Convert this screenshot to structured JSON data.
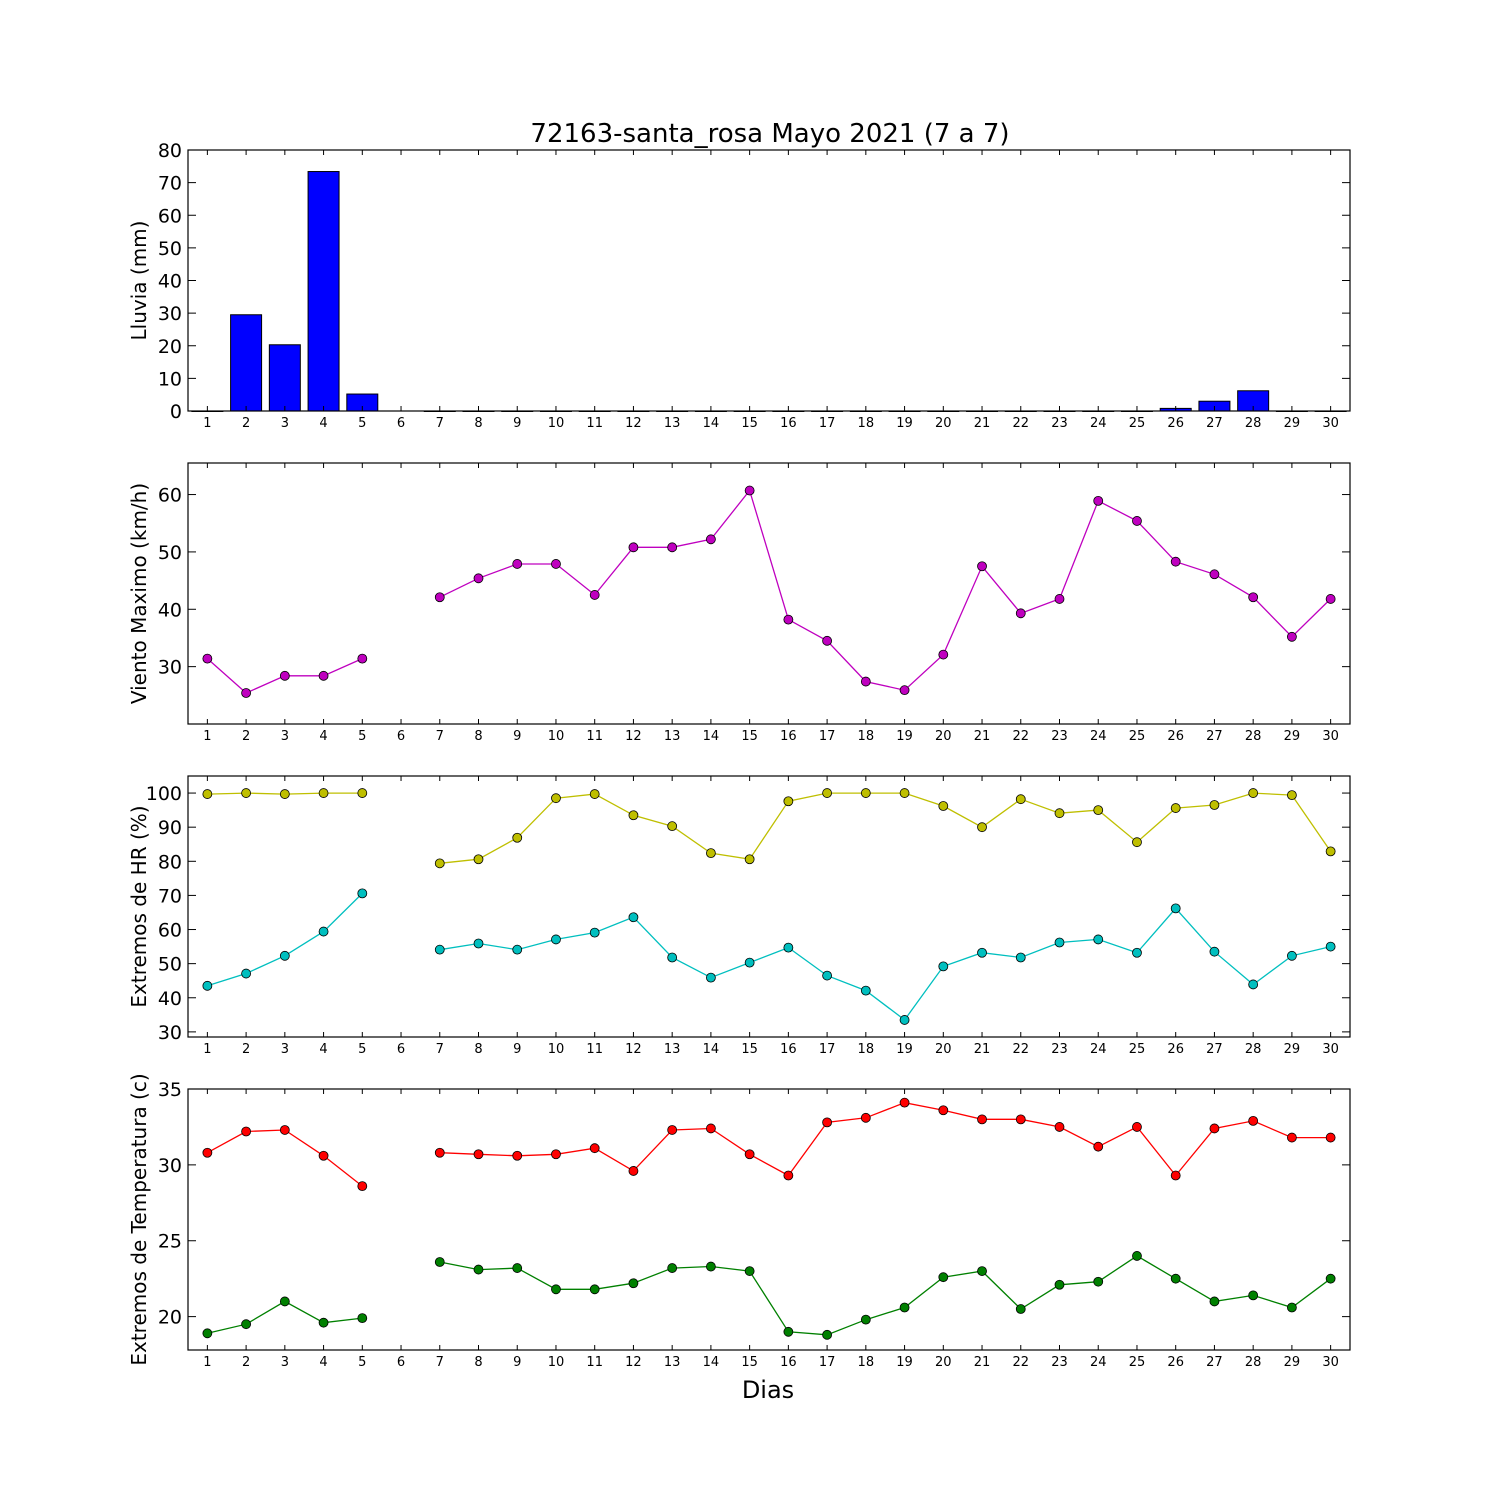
{
  "title": "72163-santa_rosa Mayo 2021  (7 a 7)",
  "xlabel": "Dias",
  "days": [
    1,
    2,
    3,
    4,
    5,
    6,
    7,
    8,
    9,
    10,
    11,
    12,
    13,
    14,
    15,
    16,
    17,
    18,
    19,
    20,
    21,
    22,
    23,
    24,
    25,
    26,
    27,
    28,
    29,
    30
  ],
  "colors": {
    "rain": "#0000ff",
    "wind": "#bf00bf",
    "hr_max": "#bfbf00",
    "hr_min": "#00bfbf",
    "temp_max": "#ff0000",
    "temp_min": "#008000"
  },
  "chart_data": [
    {
      "type": "bar",
      "ylabel": "Lluvia (mm)",
      "ylim": [
        0,
        80
      ],
      "yticks": [
        0,
        10,
        20,
        30,
        40,
        50,
        60,
        70,
        80
      ],
      "x": [
        1,
        2,
        3,
        4,
        5,
        6,
        7,
        8,
        9,
        10,
        11,
        12,
        13,
        14,
        15,
        16,
        17,
        18,
        19,
        20,
        21,
        22,
        23,
        24,
        25,
        26,
        27,
        28,
        29,
        30
      ],
      "series": [
        {
          "values": [
            0,
            29.5,
            20.3,
            73.4,
            5.2,
            null,
            0,
            0,
            0,
            0,
            0,
            0,
            0,
            0,
            0,
            0,
            0,
            0,
            0,
            0,
            0,
            0,
            0,
            0,
            0,
            0.8,
            3.0,
            6.2,
            0,
            0
          ]
        }
      ]
    },
    {
      "type": "line",
      "ylabel": "Viento Maximo (km/h)",
      "ylim": [
        20,
        65.5
      ],
      "yticks": [
        30,
        40,
        50,
        60
      ],
      "x": [
        1,
        2,
        3,
        4,
        5,
        6,
        7,
        8,
        9,
        10,
        11,
        12,
        13,
        14,
        15,
        16,
        17,
        18,
        19,
        20,
        21,
        22,
        23,
        24,
        25,
        26,
        27,
        28,
        29,
        30
      ],
      "series": [
        {
          "values": [
            31.4,
            25.4,
            28.4,
            28.4,
            31.4,
            null,
            42.1,
            45.4,
            47.9,
            47.9,
            42.5,
            50.8,
            50.8,
            52.2,
            60.7,
            38.2,
            34.5,
            27.4,
            25.9,
            32.1,
            47.5,
            39.3,
            41.8,
            58.9,
            55.4,
            48.3,
            46.1,
            42.1,
            35.2,
            41.8
          ]
        }
      ]
    },
    {
      "type": "line",
      "ylabel": "Extremos de HR (%)",
      "ylim": [
        28.5,
        105
      ],
      "yticks": [
        30,
        40,
        50,
        60,
        70,
        80,
        90,
        100
      ],
      "x": [
        1,
        2,
        3,
        4,
        5,
        6,
        7,
        8,
        9,
        10,
        11,
        12,
        13,
        14,
        15,
        16,
        17,
        18,
        19,
        20,
        21,
        22,
        23,
        24,
        25,
        26,
        27,
        28,
        29,
        30
      ],
      "series": [
        {
          "values": [
            99.7,
            100,
            99.7,
            100,
            100,
            null,
            79.4,
            80.6,
            86.9,
            98.5,
            99.7,
            93.5,
            90.3,
            82.4,
            80.6,
            97.6,
            100,
            100,
            100,
            96.2,
            90.0,
            98.2,
            94.1,
            95.0,
            85.6,
            95.6,
            96.5,
            100,
            99.4,
            82.9
          ]
        },
        {
          "values": [
            43.5,
            47.1,
            52.3,
            59.4,
            70.6,
            null,
            54.1,
            55.9,
            54.1,
            57.1,
            59.1,
            63.6,
            51.8,
            45.9,
            50.3,
            54.7,
            46.5,
            42.1,
            33.5,
            49.2,
            53.2,
            51.8,
            56.2,
            57.1,
            53.2,
            66.2,
            53.5,
            43.9,
            52.3,
            55.0
          ]
        }
      ]
    },
    {
      "type": "line",
      "ylabel": "Extremos de Temperatura (c)",
      "ylim": [
        17.8,
        35
      ],
      "yticks": [
        20,
        25,
        30,
        35
      ],
      "x": [
        1,
        2,
        3,
        4,
        5,
        6,
        7,
        8,
        9,
        10,
        11,
        12,
        13,
        14,
        15,
        16,
        17,
        18,
        19,
        20,
        21,
        22,
        23,
        24,
        25,
        26,
        27,
        28,
        29,
        30
      ],
      "series": [
        {
          "values": [
            30.8,
            32.2,
            32.3,
            30.6,
            28.6,
            null,
            30.8,
            30.7,
            30.6,
            30.7,
            31.1,
            29.6,
            32.3,
            32.4,
            30.7,
            29.3,
            32.8,
            33.1,
            34.1,
            33.6,
            33.0,
            33.0,
            32.5,
            31.2,
            32.5,
            29.3,
            32.4,
            32.9,
            31.8,
            31.8
          ]
        },
        {
          "values": [
            18.9,
            19.5,
            21.0,
            19.6,
            19.9,
            null,
            23.6,
            23.1,
            23.2,
            21.8,
            21.8,
            22.2,
            23.2,
            23.3,
            23.0,
            19.0,
            18.8,
            19.8,
            20.6,
            22.6,
            23.0,
            20.5,
            22.1,
            22.3,
            24.0,
            22.5,
            21.0,
            21.4,
            20.6,
            22.5
          ]
        }
      ]
    }
  ]
}
